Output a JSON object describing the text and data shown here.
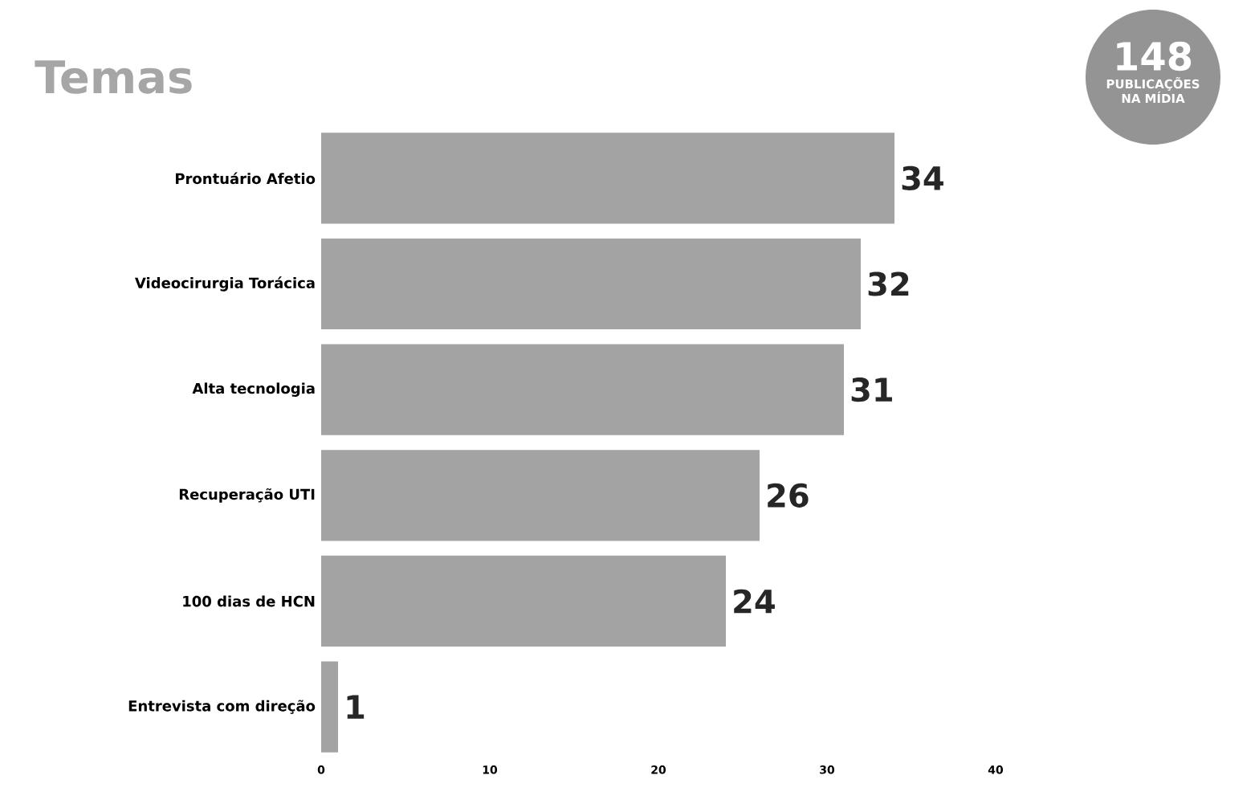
{
  "chart_data": {
    "type": "bar",
    "orientation": "horizontal",
    "title": "Temas",
    "categories": [
      "Prontuário Afetio",
      "Videocirurgia Torácica",
      "Alta tecnologia",
      "Recuperação UTI",
      "100 dias de HCN",
      "Entrevista com direção"
    ],
    "values": [
      34,
      32,
      31,
      26,
      24,
      1
    ],
    "color": "#a3a3a3",
    "xlim": [
      0,
      40
    ],
    "xticks": [
      0,
      10,
      20,
      30,
      40
    ],
    "data_labels": true,
    "annotations": [
      "148",
      "PUBLICAÇÕES NA MÍDIA"
    ]
  }
}
